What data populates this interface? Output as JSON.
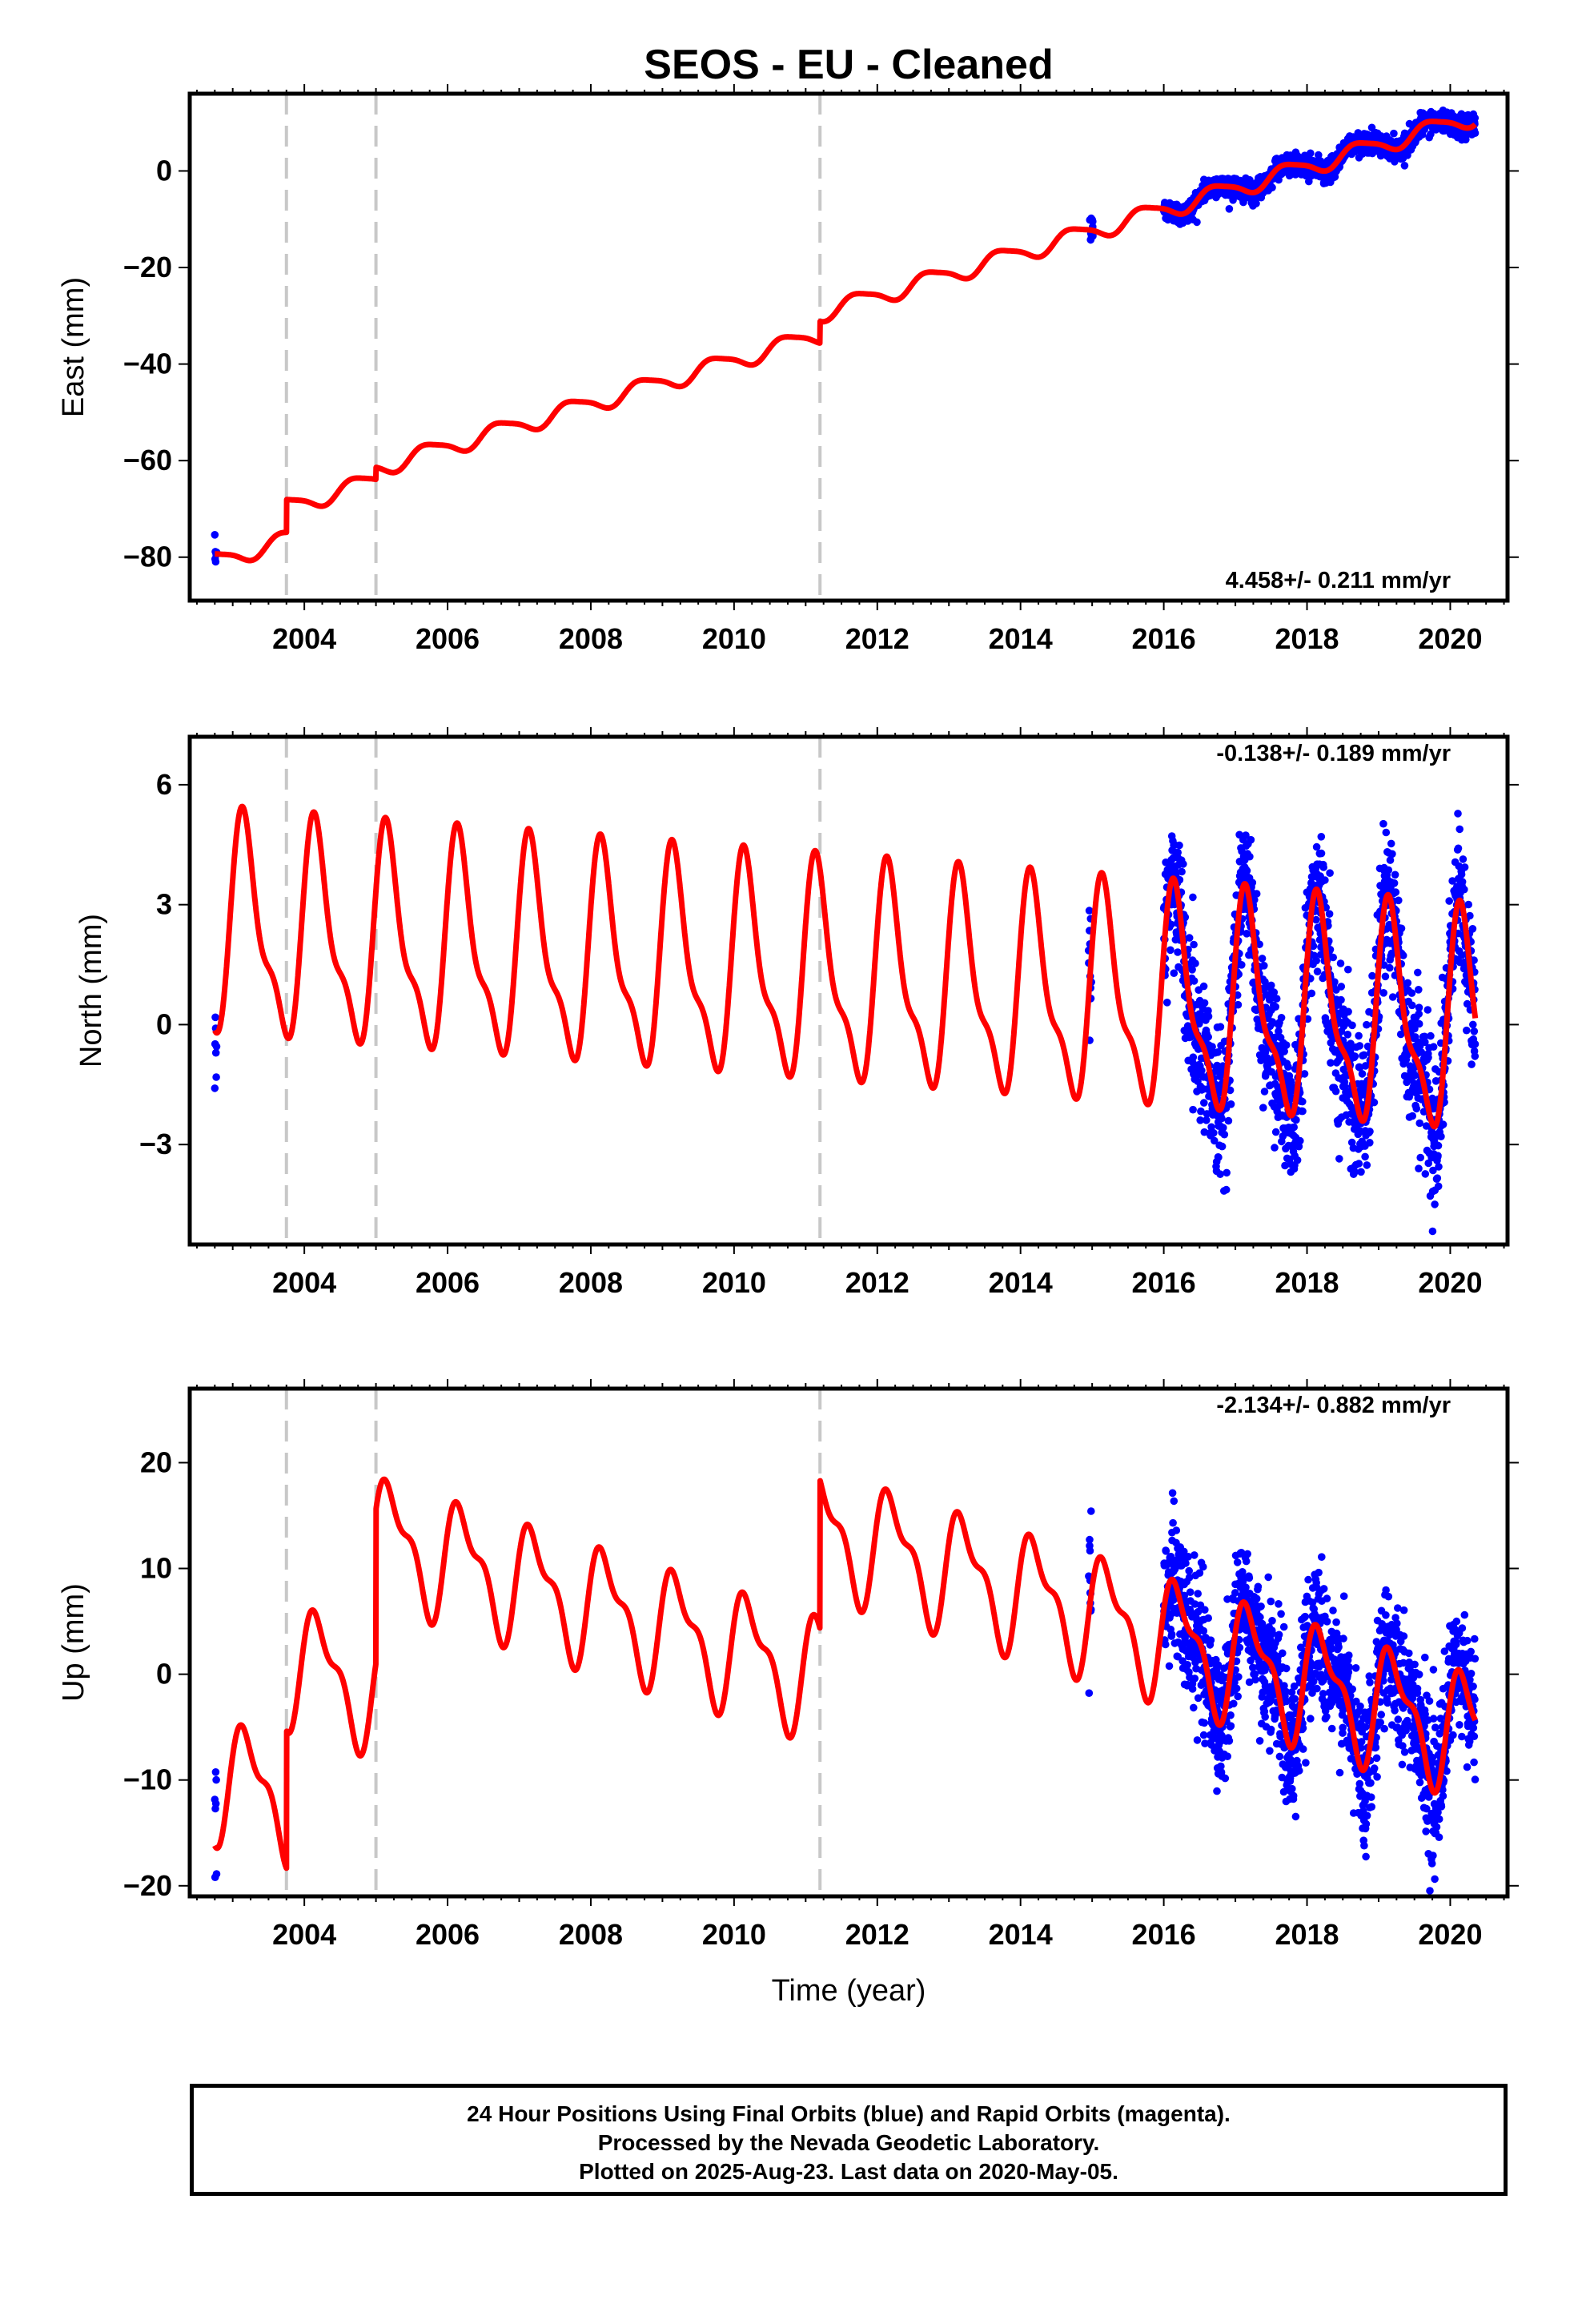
{
  "title": "SEOS  - EU - Cleaned",
  "x_axis": {
    "ticks": [
      2004,
      2006,
      2008,
      2010,
      2012,
      2014,
      2016,
      2018,
      2020
    ],
    "label": "Time (year)",
    "range": [
      2002.4,
      2020.8
    ]
  },
  "offsets": [
    2003.75,
    2005.0,
    2011.2
  ],
  "colors": {
    "model": "#ff0000",
    "final_orbits": "#0000ff",
    "offset_lines": "#c8c8c8"
  },
  "chart_data": [
    {
      "type": "scatter",
      "component": "East",
      "ylabel": "East (mm)",
      "ylim": [
        -89,
        16
      ],
      "yticks": [
        0,
        -20,
        -40,
        -60,
        -80
      ],
      "rate_text": "4.458+/- 0.211 mm/yr",
      "series": [
        {
          "name": "Final Orbits (blue)",
          "x_range": [
            2002.75,
            2020.35
          ],
          "gap_to": 2016.0,
          "noise_sd": 1.1
        },
        {
          "name": "Model (red)",
          "trend_mm_per_yr": 4.458,
          "value_at_2016": -8,
          "seasonal": {
            "annual_amp": 1.8,
            "annual_phase": 3.2,
            "semiannual_amp": 0.4,
            "semiannual_phase": 0.7
          },
          "steps_mm": [
            6.8,
            2.5,
            4.5
          ]
        }
      ]
    },
    {
      "type": "scatter",
      "component": "North",
      "ylabel": "North (mm)",
      "ylim": [
        -5.5,
        7.2
      ],
      "yticks": [
        6,
        3,
        0,
        -3
      ],
      "rate_text": "-0.138+/- 0.189 mm/yr",
      "series": [
        {
          "name": "Final Orbits (blue)",
          "x_range": [
            2002.75,
            2020.35
          ],
          "gap_to": 2016.0,
          "noise_sd": 0.9
        },
        {
          "name": "Model (red)",
          "trend_mm_per_yr": -0.138,
          "value_at_2016": 0.5,
          "seasonal": {
            "annual_amp": 2.45,
            "annual_phase": 0.45,
            "semiannual_amp": 0.9,
            "semiannual_phase": 0.3
          },
          "steps_mm": [
            0.0,
            0.0,
            0.0
          ]
        }
      ]
    },
    {
      "type": "scatter",
      "component": "Up",
      "ylabel": "Up (mm)",
      "ylim": [
        -21,
        27
      ],
      "yticks": [
        20,
        10,
        0,
        -10,
        -20
      ],
      "rate_text": "-2.134+/- 0.882 mm/yr",
      "series": [
        {
          "name": "Final Orbits (blue)",
          "x_range": [
            2002.75,
            2020.35
          ],
          "gap_to": 2016.0,
          "noise_sd": 3.2
        },
        {
          "name": "Model (red)",
          "trend_mm_per_yr": -2.134,
          "value_at_2016": 3.5,
          "seasonal": {
            "annual_amp": 5.0,
            "annual_phase": 0.2,
            "semiannual_amp": 2.2,
            "semiannual_phase": 0.8
          },
          "steps_mm": [
            13.0,
            14.5,
            14.0
          ]
        }
      ]
    }
  ],
  "caption": {
    "line1": "24 Hour Positions Using Final Orbits (blue) and Rapid Orbits (magenta).",
    "line2": "Processed by the Nevada Geodetic Laboratory.",
    "line3": "Plotted on 2025-Aug-23. Last data on 2020-May-05."
  }
}
